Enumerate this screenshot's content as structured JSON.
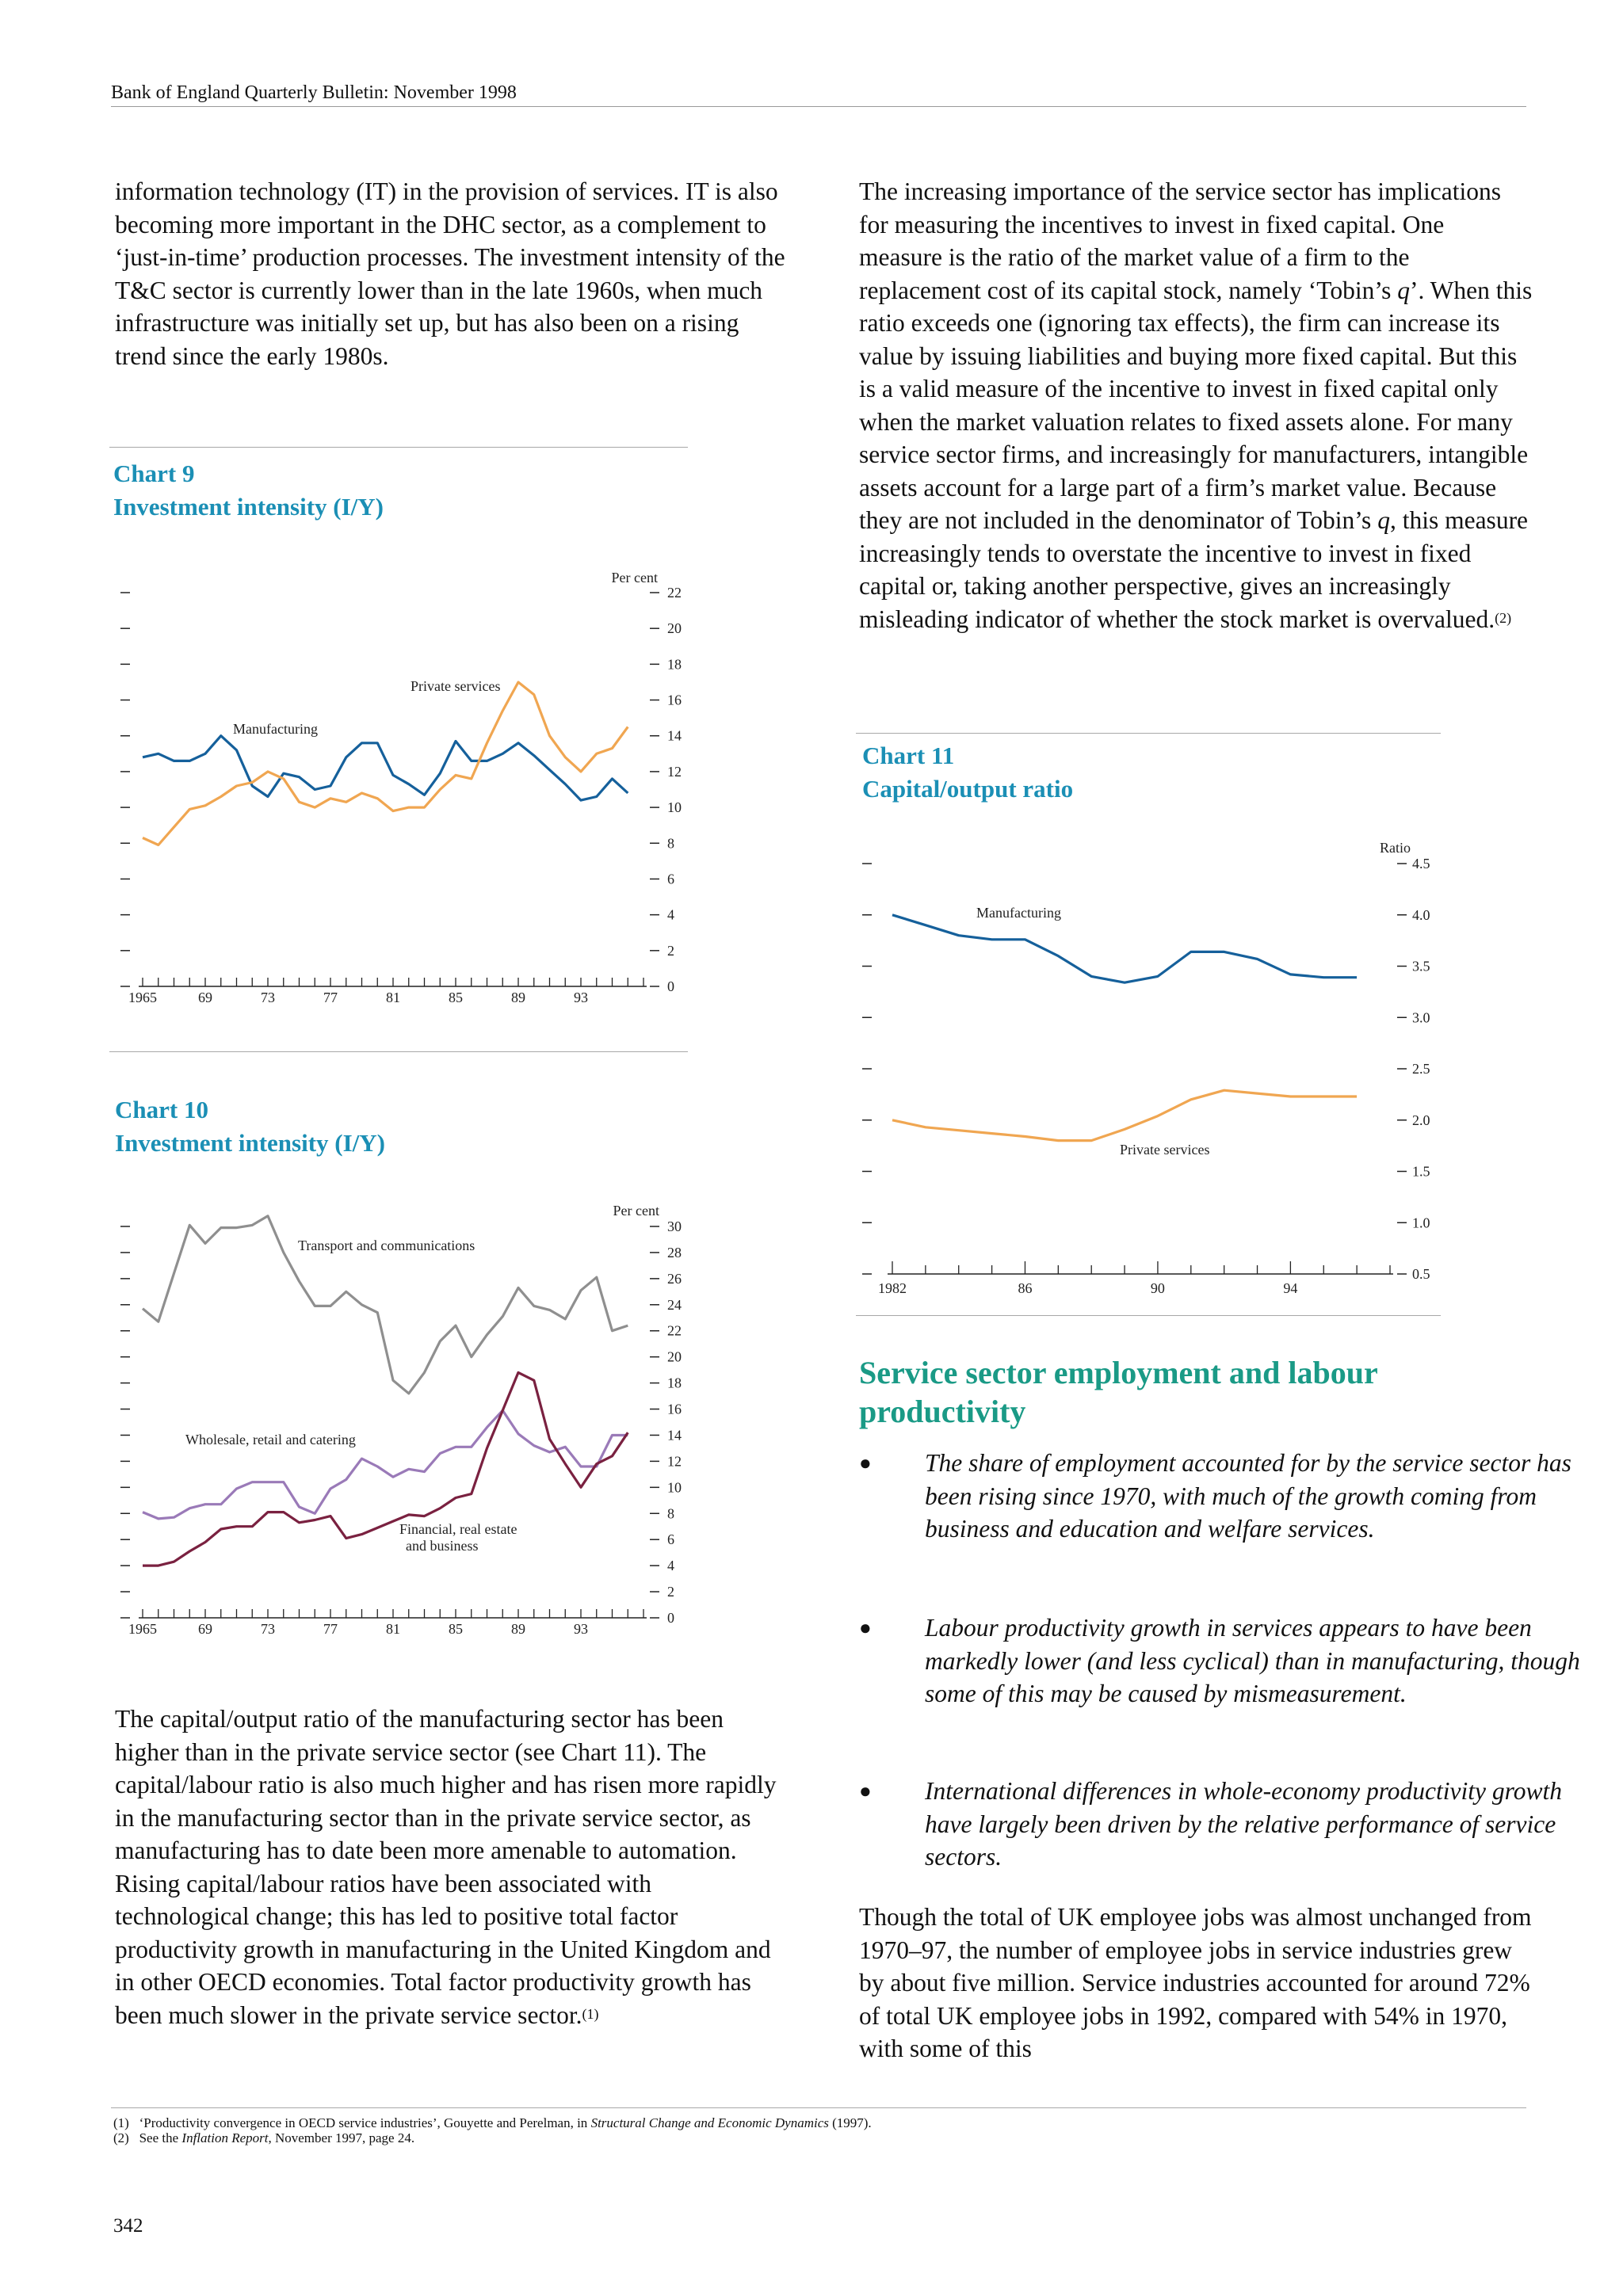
{
  "header": {
    "text": "Bank of England Quarterly Bulletin:  November 1998"
  },
  "left_column": {
    "para1": "information technology (IT) in the provision of services.  IT is also becoming more important in the DHC sector, as a complement to ‘just-in-time’ production processes.  The investment intensity of the T&C sector is currently lower than in the late 1960s, when much infrastructure was initially set up, but has also been on a rising trend since the early 1980s.",
    "para2": "The capital/output ratio of the manufacturing sector has been higher than in the private service sector (see Chart 11). The capital/labour ratio is also much higher and has risen more rapidly in the manufacturing sector than in the private service sector, as manufacturing has to date been more amenable to automation.  Rising capital/labour ratios have been associated with technological change;  this has led to positive total factor productivity growth in manufacturing in the United Kingdom and in other OECD economies.  Total factor productivity growth has been much slower in the private service sector.",
    "para2_fn": "(1)"
  },
  "right_column": {
    "para1_a": "The increasing importance of the service sector has implications for measuring the incentives to invest in fixed capital.  One measure is the ratio of the market value of a firm to the replacement cost of its capital stock, namely ‘Tobin’s ",
    "para1_q1": "q",
    "para1_b": "’.  When this ratio exceeds one (ignoring tax effects), the firm can increase its value by issuing liabilities and buying more fixed capital.  But this is a valid measure of the incentive to invest in fixed capital only when the market valuation relates to fixed assets alone.  For many service sector firms, and increasingly for manufacturers, intangible assets account for a large part of a firm’s market value.  Because they are not included in the denominator of Tobin’s ",
    "para1_q2": "q",
    "para1_c": ", this measure increasingly tends to overstate the incentive to invest in fixed capital or, taking another perspective, gives an increasingly misleading indicator of whether the stock market is overvalued.",
    "para1_fn": "(2)",
    "section_heading": "Service sector employment and labour productivity",
    "bullets": [
      "The share of employment accounted for by the service sector has been rising since 1970, with much of the growth coming from business and education and welfare services.",
      "Labour productivity growth in services appears to have been markedly lower (and less cyclical) than in manufacturing, though some of this may be caused by mismeasurement.",
      "International differences in whole-economy productivity growth have largely been driven by the relative performance of service sectors."
    ],
    "bullet_symbol": "●",
    "para2": "Though the total of UK employee jobs was almost unchanged from 1970–97, the number of employee jobs in service industries grew by about five million.  Service industries accounted for around 72% of total UK employee jobs in 1992, compared with 54% in 1970, with some of this"
  },
  "charts": {
    "chart9": {
      "label": "Chart 9",
      "title": "Investment intensity (I/Y)"
    },
    "chart10": {
      "label": "Chart 10",
      "title": "Investment intensity (I/Y)"
    },
    "chart11": {
      "label": "Chart 11",
      "title": "Capital/output ratio"
    }
  },
  "chart_data": [
    {
      "id": "chart9",
      "type": "line",
      "title": "Investment intensity (I/Y)",
      "unit": "Per cent",
      "ylim": [
        0,
        22
      ],
      "yticks": [
        "0",
        "2",
        "4",
        "6",
        "8",
        "10",
        "12",
        "14",
        "16",
        "18",
        "20",
        "22"
      ],
      "xticks": [
        "1965",
        "69",
        "73",
        "77",
        "81",
        "85",
        "89",
        "93"
      ],
      "x": [
        1965,
        1966,
        1967,
        1968,
        1969,
        1970,
        1971,
        1972,
        1973,
        1974,
        1975,
        1976,
        1977,
        1978,
        1979,
        1980,
        1981,
        1982,
        1983,
        1984,
        1985,
        1986,
        1987,
        1988,
        1989,
        1990,
        1991,
        1992,
        1993,
        1994,
        1995,
        1996,
        1997
      ],
      "series": [
        {
          "name": "Manufacturing",
          "color": "#15609b",
          "values": [
            12.8,
            13.0,
            12.6,
            12.6,
            13.0,
            14.0,
            13.2,
            11.2,
            10.6,
            11.9,
            11.7,
            11.0,
            11.2,
            12.8,
            13.6,
            13.6,
            11.8,
            11.3,
            10.7,
            11.9,
            13.7,
            12.6,
            12.6,
            13.0,
            13.6,
            12.9,
            12.1,
            11.3,
            10.4,
            10.6,
            11.6,
            10.8,
            null
          ]
        },
        {
          "name": "Private services",
          "color": "#f0a651",
          "values": [
            8.3,
            7.9,
            8.9,
            9.9,
            10.1,
            10.6,
            11.2,
            11.4,
            12.0,
            11.6,
            10.3,
            10.0,
            10.5,
            10.3,
            10.8,
            10.5,
            9.8,
            10.0,
            10.0,
            11.0,
            11.8,
            11.6,
            13.6,
            15.4,
            17.0,
            16.3,
            14.0,
            12.8,
            12.0,
            13.0,
            13.3,
            14.5,
            null
          ]
        }
      ]
    },
    {
      "id": "chart10",
      "type": "line",
      "title": "Investment intensity (I/Y)",
      "unit": "Per cent",
      "ylim": [
        0,
        30
      ],
      "yticks": [
        "0",
        "2",
        "4",
        "6",
        "8",
        "10",
        "12",
        "14",
        "16",
        "18",
        "20",
        "22",
        "24",
        "26",
        "28",
        "30"
      ],
      "xticks": [
        "1965",
        "69",
        "73",
        "77",
        "81",
        "85",
        "89",
        "93"
      ],
      "x": [
        1965,
        1966,
        1967,
        1968,
        1969,
        1970,
        1971,
        1972,
        1973,
        1974,
        1975,
        1976,
        1977,
        1978,
        1979,
        1980,
        1981,
        1982,
        1983,
        1984,
        1985,
        1986,
        1987,
        1988,
        1989,
        1990,
        1991,
        1992,
        1993,
        1994,
        1995,
        1996,
        1997
      ],
      "series": [
        {
          "name": "Transport and communications",
          "color": "#8f8f8f",
          "values": [
            23.7,
            22.7,
            26.4,
            30.1,
            28.7,
            29.9,
            29.9,
            30.1,
            30.8,
            28.0,
            25.8,
            23.9,
            23.9,
            25.0,
            24.0,
            23.4,
            18.2,
            17.2,
            18.8,
            21.2,
            22.4,
            20.0,
            21.7,
            23.1,
            25.3,
            23.9,
            23.6,
            22.9,
            25.1,
            26.1,
            22.0,
            22.4,
            null
          ]
        },
        {
          "name": "Wholesale, retail and catering",
          "color": "#9a7ab8",
          "values": [
            8.1,
            7.6,
            7.7,
            8.4,
            8.7,
            8.7,
            9.9,
            10.4,
            10.4,
            10.4,
            8.5,
            8.0,
            9.9,
            10.6,
            12.2,
            11.6,
            10.8,
            11.4,
            11.2,
            12.6,
            13.1,
            13.1,
            14.6,
            15.9,
            14.1,
            13.2,
            12.7,
            13.1,
            11.6,
            11.6,
            14.0,
            14.0,
            null
          ]
        },
        {
          "name": "Financial, real estate and business",
          "color": "#7a2140",
          "values": [
            4.0,
            4.0,
            4.3,
            5.1,
            5.8,
            6.8,
            7.0,
            7.0,
            8.1,
            8.1,
            7.3,
            7.5,
            7.8,
            6.1,
            6.4,
            6.9,
            7.4,
            7.9,
            7.8,
            8.4,
            9.2,
            9.5,
            13.0,
            15.9,
            18.8,
            18.2,
            13.7,
            11.8,
            10.0,
            11.8,
            12.4,
            14.2,
            null
          ]
        }
      ]
    },
    {
      "id": "chart11",
      "type": "line",
      "title": "Capital/output ratio",
      "unit": "Ratio",
      "ylim": [
        0.5,
        4.5
      ],
      "yticks": [
        "0.5",
        "1.0",
        "1.5",
        "2.0",
        "2.5",
        "3.0",
        "3.5",
        "4.0",
        "4.5"
      ],
      "xticks": [
        "1982",
        "86",
        "90",
        "94"
      ],
      "x": [
        1982,
        1983,
        1984,
        1985,
        1986,
        1987,
        1988,
        1989,
        1990,
        1991,
        1992,
        1993,
        1994,
        1995,
        1996,
        1997
      ],
      "series": [
        {
          "name": "Manufacturing",
          "color": "#15609b",
          "values": [
            4.0,
            3.9,
            3.8,
            3.76,
            3.76,
            3.6,
            3.4,
            3.34,
            3.4,
            3.64,
            3.64,
            3.57,
            3.42,
            3.39,
            3.39,
            null
          ]
        },
        {
          "name": "Private services",
          "color": "#f0a651",
          "values": [
            2.0,
            1.93,
            1.9,
            1.87,
            1.84,
            1.8,
            1.8,
            1.91,
            2.04,
            2.2,
            2.29,
            2.26,
            2.23,
            2.23,
            2.23,
            null
          ]
        }
      ]
    }
  ],
  "chart_labels": {
    "chart9_unit": "Per cent",
    "chart9_manufacturing": "Manufacturing",
    "chart9_private": "Private services",
    "chart10_unit": "Per cent",
    "chart10_tc": "Transport and communications",
    "chart10_wrc": "Wholesale, retail and catering",
    "chart10_fin_1": "Financial, real estate",
    "chart10_fin_2": "and business",
    "chart11_unit": "Ratio",
    "chart11_manufacturing": "Manufacturing",
    "chart11_private": "Private services"
  },
  "footnotes": {
    "fn1_num": "(1)",
    "fn1_text_a": "‘Productivity convergence in OECD service industries’, Gouyette and Perelman, in ",
    "fn1_text_italic": "Structural Change and Economic Dynamics",
    "fn1_text_b": " (1997).",
    "fn2_num": "(2)",
    "fn2_text_a": "See the ",
    "fn2_text_italic": "Inflation Report",
    "fn2_text_b": ", November 1997, page 24."
  },
  "page_number": "342"
}
